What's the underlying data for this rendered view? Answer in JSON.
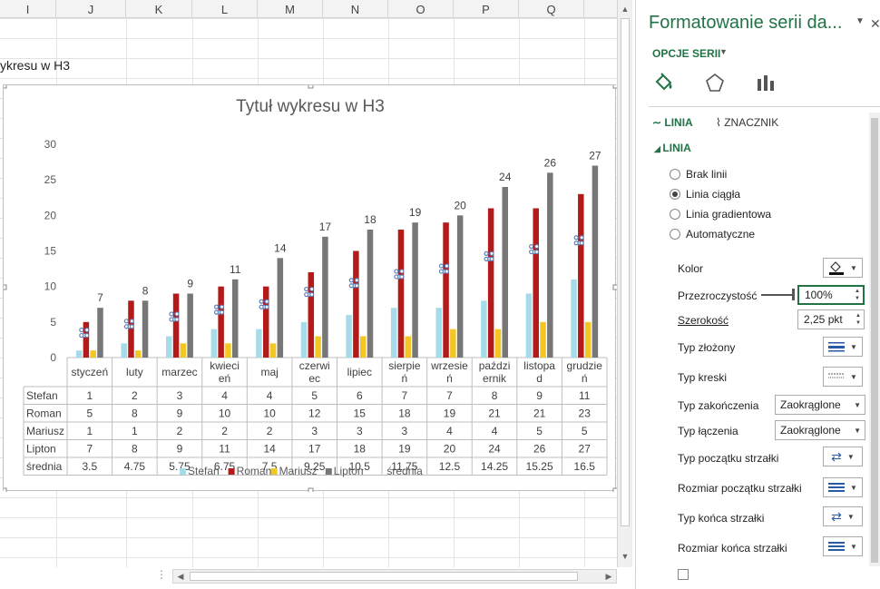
{
  "sheet": {
    "columns": [
      "I",
      "J",
      "K",
      "L",
      "M",
      "N",
      "O",
      "P",
      "Q"
    ],
    "cell_text": "ykresu w H3"
  },
  "chart_data": {
    "type": "bar",
    "title": "Tytuł wykresu w H3",
    "categories": [
      "styczeń",
      "luty",
      "marzec",
      "kwiecień",
      "maj",
      "czerwiec",
      "lipiec",
      "sierpień",
      "wrzesień",
      "październik",
      "listopad",
      "grudzień"
    ],
    "category_lines": [
      [
        "styczeń"
      ],
      [
        "luty"
      ],
      [
        "marzec"
      ],
      [
        "kwieci",
        "eń"
      ],
      [
        "maj"
      ],
      [
        "czerwi",
        "ec"
      ],
      [
        "lipiec"
      ],
      [
        "sierpie",
        "ń"
      ],
      [
        "wrzesie",
        "ń"
      ],
      [
        "paździ",
        "ernik"
      ],
      [
        "listopa",
        "d"
      ],
      [
        "grudzie",
        "ń"
      ]
    ],
    "ylim": [
      0,
      30
    ],
    "yticks": [
      0,
      5,
      10,
      15,
      20,
      25,
      30
    ],
    "series": [
      {
        "name": "Stefan",
        "values": [
          1,
          2,
          3,
          4,
          4,
          5,
          6,
          7,
          7,
          8,
          9,
          11
        ],
        "color": "#a6dce9"
      },
      {
        "name": "Roman",
        "values": [
          5,
          8,
          9,
          10,
          10,
          12,
          15,
          18,
          19,
          21,
          21,
          23
        ],
        "color": "#b31b1b"
      },
      {
        "name": "Mariusz",
        "values": [
          1,
          1,
          2,
          2,
          2,
          3,
          3,
          3,
          4,
          4,
          5,
          5
        ],
        "color": "#f3c623"
      },
      {
        "name": "Lipton",
        "values": [
          7,
          8,
          9,
          11,
          14,
          17,
          18,
          19,
          20,
          24,
          26,
          27
        ],
        "color": "#777777"
      },
      {
        "name": "średnia",
        "values": [
          3.5,
          4.75,
          5.75,
          6.75,
          7.5,
          9.25,
          10.5,
          11.75,
          12.5,
          14.25,
          15.25,
          16.5
        ],
        "color": "#5b7fb8"
      }
    ],
    "data_labels_series": "Lipton",
    "data_table": true,
    "legend": "bottom"
  },
  "pane": {
    "title": "Formatowanie serii da...",
    "opcje_label": "OPCJE SERII",
    "tab_linia": "LINIA",
    "tab_znacznik": "ZNACZNIK",
    "section_linia": "LINIA",
    "radios": [
      {
        "label": "Brak linii",
        "checked": false
      },
      {
        "label": "Linia ciągła",
        "checked": true
      },
      {
        "label": "Linia gradientowa",
        "checked": false
      },
      {
        "label": "Automatyczne",
        "checked": false
      }
    ],
    "kolor_label": "Kolor",
    "przezroczystosc_label": "Przezroczystość",
    "przezroczystosc_value": "100%",
    "szerokosc_label": "Szerokość",
    "szerokosc_value": "2,25 pkt",
    "typ_zlozony_label": "Typ złożony",
    "typ_kreski_label": "Typ kreski",
    "typ_zakonczenia_label": "Typ zakończenia",
    "typ_zakonczenia_value": "Zaokrąglone",
    "typ_laczenia_label": "Typ łączenia",
    "typ_laczenia_value": "Zaokrąglone",
    "typ_poczatku_strzalki_label": "Typ początku strzałki",
    "rozmiar_poczatku_strzalki_label": "Rozmiar początku strzałki",
    "typ_konca_strzalki_label": "Typ końca strzałki",
    "rozmiar_konca_strzalki_label": "Rozmiar końca strzałki"
  }
}
